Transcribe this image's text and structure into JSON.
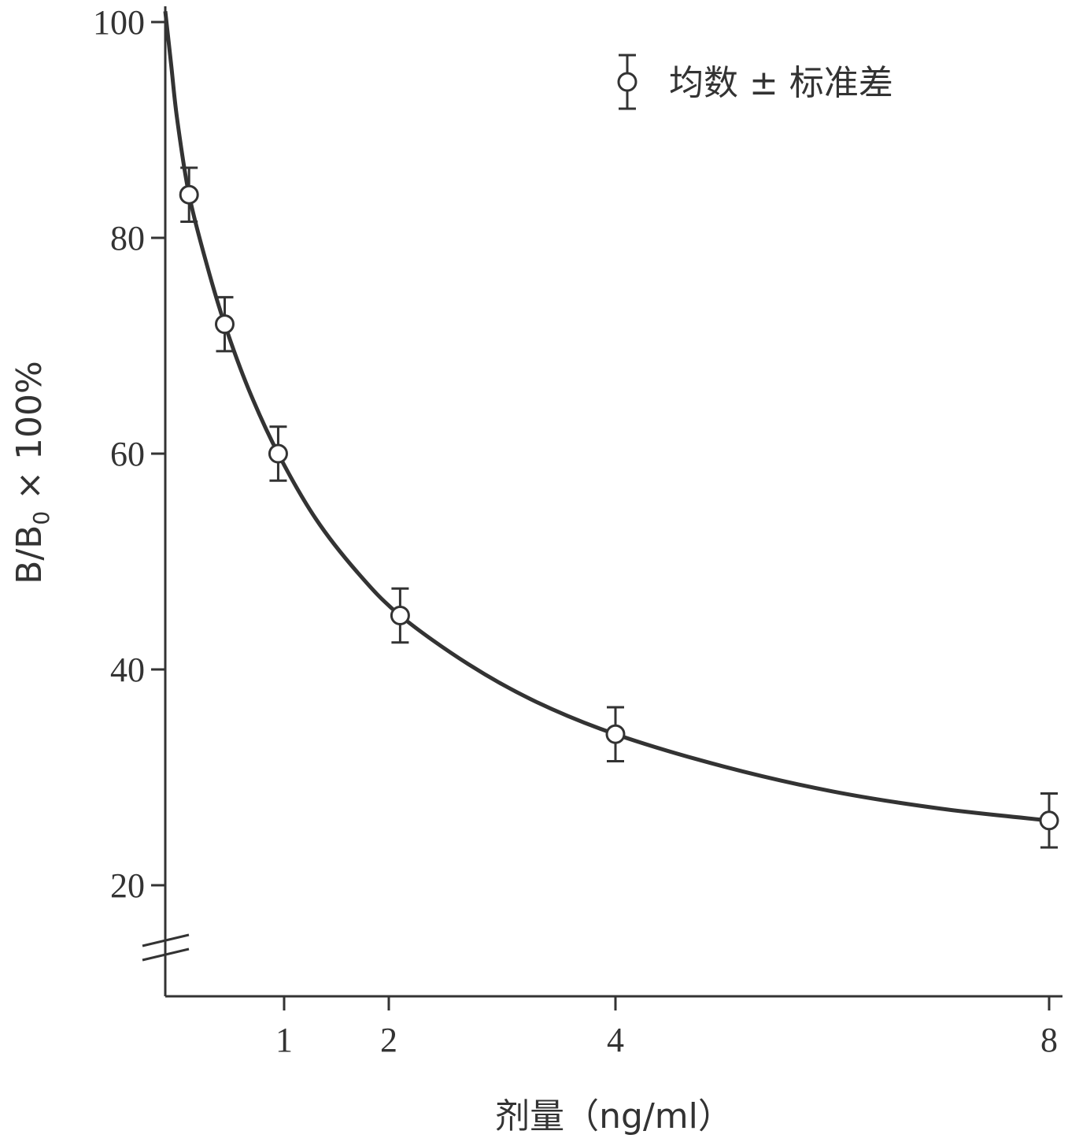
{
  "chart_data": {
    "type": "scatter",
    "xlabel": "剂量（ng/ml）",
    "ylabel": "B/B₀ × 100%",
    "ylabel_main": "B/B",
    "ylabel_sub": "0",
    "ylabel_rest": " × 100%",
    "x_ticks": [
      1,
      2,
      4,
      8
    ],
    "x_tick_labels": [
      "1",
      "2",
      "4",
      "8"
    ],
    "y_ticks": [
      20,
      40,
      60,
      80,
      100
    ],
    "y_tick_labels": [
      "20",
      "40",
      "60",
      "80",
      "100"
    ],
    "ylim": [
      20,
      100
    ],
    "y_axis_break": true,
    "x_scale": "nonlinear (tick spacing as printed)",
    "grid": false,
    "legend": {
      "label": "均数 ± 标准差",
      "position": "top-right"
    },
    "series": [
      {
        "points": [
          {
            "x": 0.2,
            "y": 84,
            "err": 2.5
          },
          {
            "x": 0.5,
            "y": 72,
            "err": 2.5
          },
          {
            "x": 0.95,
            "y": 60,
            "err": 2.5
          },
          {
            "x": 2.1,
            "y": 45,
            "err": 2.5
          },
          {
            "x": 4.0,
            "y": 34,
            "err": 2.5
          },
          {
            "x": 8.0,
            "y": 26,
            "err": 2.5
          }
        ],
        "curve": [
          {
            "x": 0.0,
            "y": 101
          },
          {
            "x": 0.05,
            "y": 96
          },
          {
            "x": 0.1,
            "y": 91
          },
          {
            "x": 0.2,
            "y": 84
          },
          {
            "x": 0.35,
            "y": 77.5
          },
          {
            "x": 0.5,
            "y": 72
          },
          {
            "x": 0.7,
            "y": 66
          },
          {
            "x": 0.95,
            "y": 60
          },
          {
            "x": 1.3,
            "y": 54
          },
          {
            "x": 1.7,
            "y": 49
          },
          {
            "x": 2.1,
            "y": 45
          },
          {
            "x": 2.7,
            "y": 40.5
          },
          {
            "x": 3.3,
            "y": 37
          },
          {
            "x": 4.0,
            "y": 34
          },
          {
            "x": 5.0,
            "y": 31
          },
          {
            "x": 6.0,
            "y": 28.7
          },
          {
            "x": 7.0,
            "y": 27.1
          },
          {
            "x": 8.0,
            "y": 26
          }
        ]
      }
    ]
  }
}
